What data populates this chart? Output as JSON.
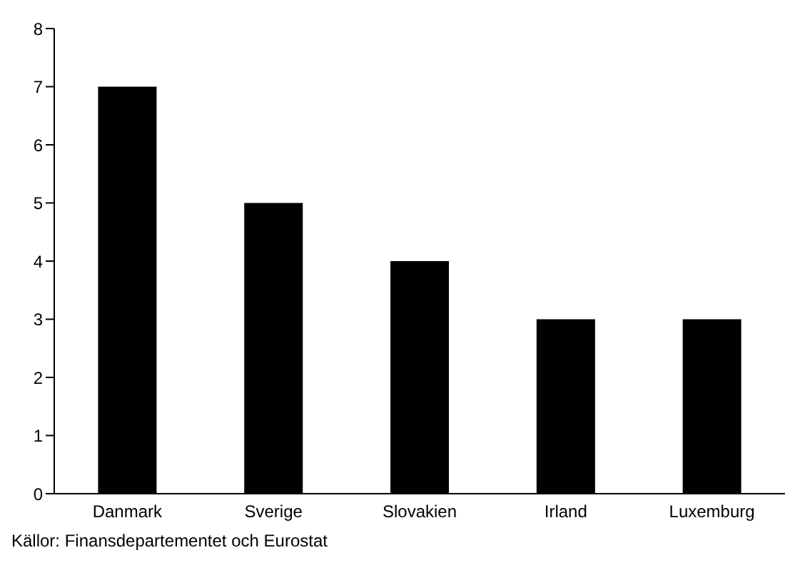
{
  "chart_data": {
    "type": "bar",
    "categories": [
      "Danmark",
      "Sverige",
      "Slovakien",
      "Irland",
      "Luxemburg"
    ],
    "values": [
      7,
      5,
      4,
      3,
      3
    ],
    "color": "#000000",
    "ylim": [
      0,
      8
    ],
    "yticks": [
      0,
      1,
      2,
      3,
      4,
      5,
      6,
      7,
      8
    ],
    "grid": false,
    "annotations": [
      "Källor: Finansdepartementet och Eurostat"
    ]
  }
}
